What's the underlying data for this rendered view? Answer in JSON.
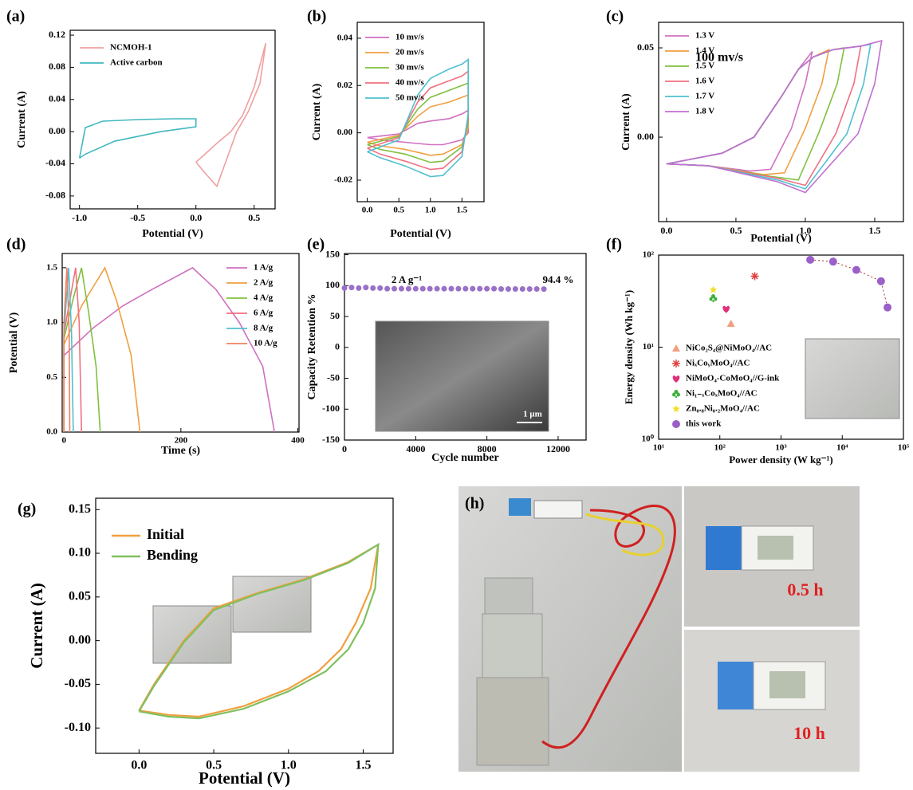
{
  "chart_data": [
    {
      "type": "line",
      "panel_label": "(a)",
      "xlabel": "Potential (V)",
      "ylabel": "Current (A)",
      "xlim": [
        -1.08,
        0.68
      ],
      "ylim": [
        -0.096,
        0.126
      ],
      "xticks": [
        {
          "value": -1,
          "label": "-1.0"
        },
        -0.5,
        {
          "value": 0,
          "label": "0.0"
        },
        0.5
      ],
      "yticks": [
        -0.08,
        -0.04,
        {
          "value": 0,
          "label": "0.00"
        },
        0.04,
        0.08,
        0.12
      ],
      "legend": "upper left",
      "series": [
        {
          "name": "NCMOH-1",
          "color": "#f0a0a0",
          "x": [
            0,
            0.1,
            0.2,
            0.3,
            0.4,
            0.5,
            0.6,
            0.55,
            0.45,
            0.35,
            0.25,
            0.18,
            0.1,
            0
          ],
          "values": [
            -0.038,
            -0.025,
            -0.012,
            0,
            0.02,
            0.055,
            0.11,
            0.06,
            0.025,
            0,
            -0.04,
            -0.068,
            -0.055,
            -0.038
          ]
        },
        {
          "name": "Active carbon",
          "color": "#40b8c0",
          "x": [
            -1,
            -0.95,
            -0.8,
            -0.5,
            -0.2,
            0,
            0,
            -0.3,
            -0.7,
            -0.95,
            -1
          ],
          "values": [
            -0.033,
            0.005,
            0.013,
            0.015,
            0.016,
            0.016,
            0.006,
            0,
            -0.012,
            -0.028,
            -0.033
          ]
        }
      ]
    },
    {
      "type": "line",
      "panel_label": "(b)",
      "xlabel": "Potential (V)",
      "ylabel": "Current (A)",
      "xlim": [
        -0.16,
        1.85
      ],
      "ylim": [
        -0.0291,
        0.0467
      ],
      "xticks": [
        {
          "value": 0,
          "label": "0.0"
        },
        0.5,
        {
          "value": 1,
          "label": "1.0"
        },
        1.5
      ],
      "yticks": [
        -0.02,
        {
          "value": 0,
          "label": "0.00"
        },
        0.02,
        0.04
      ],
      "legend": "upper left",
      "series": [
        {
          "name": "10 mv/s",
          "color": "#d070c0",
          "x": [
            0,
            0.5,
            0.8,
            1.0,
            1.3,
            1.5,
            1.6,
            1.6,
            1.5,
            1.2,
            1.0,
            0.6,
            0.2,
            0
          ],
          "values": [
            -0.002,
            -0.0005,
            0.004,
            0.005,
            0.006,
            0.008,
            0.0095,
            0,
            -0.003,
            -0.005,
            -0.005,
            -0.004,
            -0.003,
            -0.002
          ]
        },
        {
          "name": "20 mv/s",
          "color": "#f0a040",
          "x": [
            0,
            0.5,
            0.8,
            1.0,
            1.3,
            1.5,
            1.6,
            1.6,
            1.5,
            1.2,
            1.0,
            0.6,
            0.2,
            0
          ],
          "values": [
            -0.004,
            -0.001,
            0.007,
            0.011,
            0.013,
            0.015,
            0.016,
            0.002,
            -0.005,
            -0.009,
            -0.0095,
            -0.007,
            -0.0055,
            -0.004
          ]
        },
        {
          "name": "30 mv/s",
          "color": "#80c040",
          "x": [
            0,
            0.5,
            0.8,
            1.0,
            1.3,
            1.5,
            1.6,
            1.6,
            1.5,
            1.2,
            1.0,
            0.6,
            0.2,
            0
          ],
          "values": [
            -0.005,
            -0.0015,
            0.01,
            0.015,
            0.018,
            0.02,
            0.021,
            0.004,
            -0.006,
            -0.012,
            -0.0125,
            -0.009,
            -0.007,
            -0.005
          ]
        },
        {
          "name": "40 mv/s",
          "color": "#f07080",
          "x": [
            0,
            0.5,
            0.8,
            1.0,
            1.3,
            1.5,
            1.6,
            1.6,
            1.5,
            1.2,
            1.0,
            0.6,
            0.2,
            0
          ],
          "values": [
            -0.0065,
            -0.002,
            0.013,
            0.019,
            0.022,
            0.024,
            0.026,
            0.006,
            -0.008,
            -0.015,
            -0.0155,
            -0.012,
            -0.009,
            -0.0065
          ]
        },
        {
          "name": "50 mv/s",
          "color": "#50c0d0",
          "x": [
            0,
            0.5,
            0.8,
            1.0,
            1.3,
            1.5,
            1.6,
            1.6,
            1.5,
            1.2,
            1.0,
            0.6,
            0.2,
            0
          ],
          "values": [
            -0.008,
            -0.003,
            0.016,
            0.023,
            0.027,
            0.029,
            0.031,
            0.008,
            -0.01,
            -0.018,
            -0.0185,
            -0.014,
            -0.0105,
            -0.008
          ]
        }
      ]
    },
    {
      "type": "line",
      "panel_label": "(c)",
      "xlabel": "Potential (V)",
      "ylabel": "Current (A)",
      "xlim": [
        -0.057,
        1.707
      ],
      "ylim": [
        -0.0473,
        0.0643
      ],
      "xticks": [
        {
          "value": 0,
          "label": "0.0"
        },
        0.5,
        {
          "value": 1,
          "label": "1.0"
        },
        1.5
      ],
      "yticks": [
        {
          "value": 0,
          "label": "0.00"
        },
        0.05
      ],
      "legend": "upper left",
      "annotations": [
        "100 mv/s"
      ],
      "series": [
        {
          "name": "1.3 V",
          "color": "#d070c0",
          "x": [
            0,
            0.4,
            0.63,
            0.83,
            0.95,
            1.05,
            1.0,
            0.9,
            0.75,
            0.6,
            0.3,
            0
          ],
          "values": [
            -0.015,
            -0.009,
            0,
            0.023,
            0.038,
            0.048,
            0.03,
            0.005,
            -0.018,
            -0.019,
            -0.016,
            -0.015
          ]
        },
        {
          "name": "1.4 V",
          "color": "#f0a040",
          "x": [
            0,
            0.4,
            0.63,
            0.83,
            0.95,
            1.06,
            1.17,
            1.12,
            1.0,
            0.85,
            0.7,
            0.3,
            0
          ],
          "values": [
            -0.015,
            -0.009,
            0,
            0.023,
            0.038,
            0.045,
            0.049,
            0.03,
            0.005,
            -0.02,
            -0.021,
            -0.016,
            -0.015
          ]
        },
        {
          "name": "1.5 V",
          "color": "#80c040",
          "x": [
            0,
            0.4,
            0.63,
            0.83,
            0.95,
            1.06,
            1.2,
            1.28,
            1.23,
            1.1,
            0.95,
            0.75,
            0.3,
            0
          ],
          "values": [
            -0.015,
            -0.009,
            0,
            0.023,
            0.038,
            0.045,
            0.049,
            0.05,
            0.03,
            0.003,
            -0.024,
            -0.022,
            -0.016,
            -0.015
          ]
        },
        {
          "name": "1.6 V",
          "color": "#f07080",
          "x": [
            0,
            0.4,
            0.63,
            0.83,
            0.95,
            1.06,
            1.2,
            1.4,
            1.35,
            1.22,
            1.0,
            0.8,
            0.3,
            0
          ],
          "values": [
            -0.015,
            -0.009,
            0,
            0.023,
            0.038,
            0.045,
            0.049,
            0.051,
            0.03,
            0.002,
            -0.027,
            -0.023,
            -0.016,
            -0.015
          ]
        },
        {
          "name": "1.7 V",
          "color": "#50c0d0",
          "x": [
            0,
            0.4,
            0.63,
            0.83,
            0.95,
            1.06,
            1.2,
            1.4,
            1.47,
            1.42,
            1.3,
            1.0,
            0.8,
            0.3,
            0
          ],
          "values": [
            -0.015,
            -0.009,
            0,
            0.023,
            0.038,
            0.045,
            0.049,
            0.051,
            0.052,
            0.03,
            0.002,
            -0.029,
            -0.024,
            -0.016,
            -0.015
          ]
        },
        {
          "name": "1.8 V",
          "color": "#c070d0",
          "x": [
            0,
            0.4,
            0.63,
            0.83,
            0.95,
            1.06,
            1.2,
            1.4,
            1.55,
            1.5,
            1.38,
            1.0,
            0.8,
            0.3,
            0
          ],
          "values": [
            -0.015,
            -0.009,
            0,
            0.023,
            0.038,
            0.045,
            0.049,
            0.051,
            0.054,
            0.03,
            0.002,
            -0.031,
            -0.025,
            -0.016,
            -0.015
          ]
        }
      ]
    },
    {
      "type": "line",
      "panel_label": "(d)",
      "xlabel": "Time (s)",
      "ylabel": "Potential (V)",
      "xlim": [
        -3,
        402
      ],
      "ylim": [
        0,
        1.63
      ],
      "xticks": [
        0,
        200,
        400
      ],
      "yticks": [
        {
          "value": 0,
          "label": "0.0"
        },
        0.5,
        {
          "value": 1,
          "label": "1.0"
        },
        1.5
      ],
      "legend": "upper right",
      "series": [
        {
          "name": "1 A/g",
          "color": "#d070c0",
          "x": [
            0,
            0,
            50,
            100,
            150,
            220,
            260,
            300,
            340,
            360
          ],
          "values": [
            0,
            0.7,
            0.95,
            1.15,
            1.3,
            1.5,
            1.3,
            1.0,
            0.6,
            0
          ]
        },
        {
          "name": "2 A/g",
          "color": "#f0a040",
          "x": [
            0,
            0,
            30,
            70,
            90,
            115,
            130
          ],
          "values": [
            0,
            0.8,
            1.15,
            1.5,
            1.2,
            0.7,
            0
          ]
        },
        {
          "name": "4 A/g",
          "color": "#80c040",
          "x": [
            0,
            0,
            15,
            30,
            42,
            55,
            62
          ],
          "values": [
            0,
            0.85,
            1.2,
            1.5,
            1.1,
            0.6,
            0
          ]
        },
        {
          "name": "6 A/g",
          "color": "#f07080",
          "x": [
            0,
            0,
            10,
            20,
            26,
            30
          ],
          "values": [
            0,
            0.9,
            1.2,
            1.5,
            1.0,
            0
          ]
        },
        {
          "name": "8 A/g",
          "color": "#50c0d0",
          "x": [
            0,
            0,
            8,
            13,
            16
          ],
          "values": [
            0,
            0.9,
            1.5,
            0.9,
            0
          ]
        },
        {
          "name": "10 A/g",
          "color": "#f08060",
          "x": [
            0,
            0,
            5,
            9,
            10
          ],
          "values": [
            0,
            1.0,
            1.5,
            0.9,
            0
          ]
        }
      ]
    },
    {
      "type": "scatter",
      "panel_label": "(e)",
      "xlabel": "Cycle number",
      "ylabel": "Capacity Retention %",
      "xlim": [
        0,
        13570
      ],
      "ylim": [
        -150,
        152
      ],
      "xticks": [
        0,
        4000,
        8000,
        12000
      ],
      "yticks": [
        -150,
        -100,
        -50,
        0,
        50,
        100,
        150
      ],
      "annotations": [
        "2 A g⁻¹",
        "94.4 %"
      ],
      "inset_label": "1 μm",
      "color": "#9a70c8",
      "x": [
        0,
        400,
        800,
        1200,
        1600,
        2000,
        2400,
        2800,
        3200,
        3600,
        4000,
        4400,
        4800,
        5200,
        5600,
        6000,
        6400,
        6800,
        7200,
        7600,
        8000,
        8400,
        8800,
        9200,
        9600,
        10000,
        10400,
        10800,
        11200
      ],
      "values": [
        96,
        97,
        96,
        97,
        96,
        96,
        95,
        95,
        95,
        95,
        95,
        95,
        95,
        95,
        95,
        95,
        95,
        95,
        95,
        95,
        95,
        95,
        94.5,
        94.5,
        94.5,
        94.5,
        94.5,
        94.5,
        94.4
      ]
    },
    {
      "type": "scatter",
      "panel_label": "(f)",
      "xlabel": "Power density (W kg⁻¹)",
      "ylabel": "Energy density (Wh kg⁻¹)",
      "xscale": "log",
      "yscale": "log",
      "xlim": [
        10,
        100000
      ],
      "ylim": [
        1,
        100
      ],
      "xticks": [
        {
          "value": 10,
          "label": "10¹"
        },
        {
          "value": 100,
          "label": "10²"
        },
        {
          "value": 1000,
          "label": "10³"
        },
        {
          "value": 10000,
          "label": "10⁴"
        },
        {
          "value": 100000,
          "label": "10⁵"
        }
      ],
      "yticks": [
        {
          "value": 1,
          "label": "10⁰"
        },
        {
          "value": 10,
          "label": "10¹"
        },
        {
          "value": 100,
          "label": "10²"
        }
      ],
      "legend": "lower left",
      "series": [
        {
          "name": "NiCo₂S₄@NiMoO₄//AC",
          "color": "#f0a080",
          "marker": "triangle",
          "x": [
            152
          ],
          "values": [
            18
          ]
        },
        {
          "name": "NiₓCoᵧMoO₄//AC",
          "color": "#e04040",
          "marker": "asterisk",
          "x": [
            372
          ],
          "values": [
            59
          ]
        },
        {
          "name": "NiMoO₄-CoMoO₄//G-ink",
          "color": "#e0307a",
          "marker": "heart",
          "x": [
            127
          ],
          "values": [
            26
          ]
        },
        {
          "name": "Ni₁₋ₓCoₓMoO₄//AC",
          "color": "#40b040",
          "marker": "club",
          "x": [
            78
          ],
          "values": [
            34
          ]
        },
        {
          "name": "Zn₀.₈Ni₀.₂MoO₄//AC",
          "color": "#f0e020",
          "marker": "star",
          "x": [
            78
          ],
          "values": [
            42
          ]
        },
        {
          "name": "this work",
          "color": "#9a60c8",
          "marker": "circle",
          "line_style": "dotted",
          "x": [
            3000,
            7100,
            17000,
            43000,
            55000
          ],
          "values": [
            89,
            85,
            69,
            52,
            27
          ]
        }
      ]
    },
    {
      "type": "line",
      "panel_label": "(g)",
      "xlabel": "Potential (V)",
      "ylabel": "Current (A)",
      "xlim": [
        -0.29,
        1.7
      ],
      "ylim": [
        -0.129,
        0.163
      ],
      "xticks": [
        {
          "value": 0,
          "label": "0.0"
        },
        0.5,
        {
          "value": 1,
          "label": "1.0"
        },
        1.5
      ],
      "yticks": [
        {
          "value": -0.1,
          "label": "-0.10"
        },
        -0.05,
        {
          "value": 0,
          "label": "0.00"
        },
        0.05,
        {
          "value": 0.1,
          "label": "0.10"
        },
        0.15
      ],
      "legend": "upper left",
      "series": [
        {
          "name": "Initial",
          "color": "#f0a040",
          "x": [
            0,
            0.1,
            0.3,
            0.5,
            0.8,
            1.1,
            1.4,
            1.6,
            1.55,
            1.45,
            1.35,
            1.2,
            1.0,
            0.7,
            0.4,
            0.2,
            0
          ],
          "values": [
            -0.08,
            -0.05,
            0,
            0.037,
            0.055,
            0.07,
            0.09,
            0.11,
            0.06,
            0.02,
            -0.01,
            -0.035,
            -0.055,
            -0.075,
            -0.087,
            -0.085,
            -0.08
          ]
        },
        {
          "name": "Bending",
          "color": "#80c060",
          "x": [
            0,
            0.1,
            0.3,
            0.5,
            0.8,
            1.1,
            1.4,
            1.6,
            1.58,
            1.5,
            1.4,
            1.25,
            1.0,
            0.7,
            0.4,
            0.2,
            0
          ],
          "values": [
            -0.081,
            -0.052,
            -0.002,
            0.035,
            0.054,
            0.069,
            0.089,
            0.11,
            0.06,
            0.02,
            -0.01,
            -0.035,
            -0.058,
            -0.078,
            -0.089,
            -0.087,
            -0.081
          ]
        }
      ]
    }
  ],
  "photo_panel": {
    "panel_label": "(h)",
    "captions": [
      "0.5 h",
      "10 h"
    ]
  }
}
